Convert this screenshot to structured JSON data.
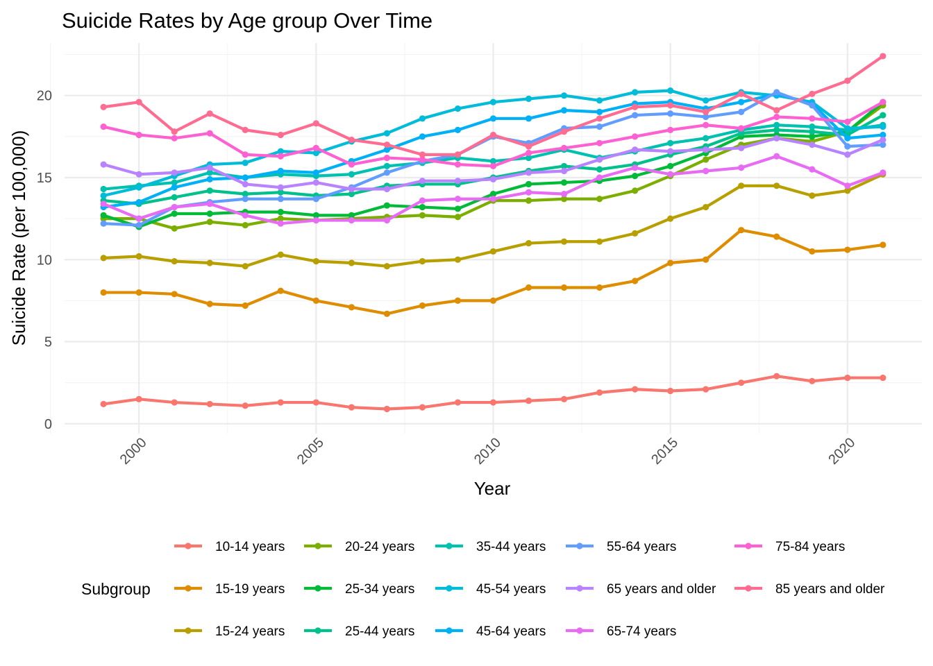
{
  "chart_data": {
    "type": "line",
    "title": "Suicide Rates by Age group Over Time",
    "xlabel": "Year",
    "ylabel": "Suicide Rate (per 100,000)",
    "xlim": [
      1997.9,
      2022.1
    ],
    "ylim": [
      -0.6,
      23.2
    ],
    "x_ticks": [
      2000,
      2005,
      2010,
      2015,
      2020
    ],
    "y_ticks": [
      0,
      5,
      10,
      15,
      20
    ],
    "grid": true,
    "legend_title": "Subgroup",
    "legend_position": "bottom",
    "x": [
      1999,
      2000,
      2001,
      2002,
      2003,
      2004,
      2005,
      2006,
      2007,
      2008,
      2009,
      2010,
      2011,
      2012,
      2013,
      2014,
      2015,
      2016,
      2017,
      2018,
      2019,
      2020,
      2021
    ],
    "series": [
      {
        "name": "10-14 years",
        "color": "#F8766D",
        "values": [
          1.2,
          1.5,
          1.3,
          1.2,
          1.1,
          1.3,
          1.3,
          1.0,
          0.9,
          1.0,
          1.3,
          1.3,
          1.4,
          1.5,
          1.9,
          2.1,
          2.0,
          2.1,
          2.5,
          2.9,
          2.6,
          2.8,
          2.8
        ]
      },
      {
        "name": "15-19 years",
        "color": "#DE8C00",
        "values": [
          8.0,
          8.0,
          7.9,
          7.3,
          7.2,
          8.1,
          7.5,
          7.1,
          6.7,
          7.2,
          7.5,
          7.5,
          8.3,
          8.3,
          8.3,
          8.7,
          9.8,
          10.0,
          11.8,
          11.4,
          10.5,
          10.6,
          10.9
        ]
      },
      {
        "name": "15-24 years",
        "color": "#B79F00",
        "values": [
          10.1,
          10.2,
          9.9,
          9.8,
          9.6,
          10.3,
          9.9,
          9.8,
          9.6,
          9.9,
          10.0,
          10.5,
          11.0,
          11.1,
          11.1,
          11.6,
          12.5,
          13.2,
          14.5,
          14.5,
          13.9,
          14.2,
          15.2
        ]
      },
      {
        "name": "20-24 years",
        "color": "#7CAE00",
        "values": [
          12.5,
          12.5,
          11.9,
          12.3,
          12.1,
          12.5,
          12.4,
          12.5,
          12.6,
          12.7,
          12.6,
          13.6,
          13.6,
          13.7,
          13.7,
          14.2,
          15.1,
          16.1,
          17.0,
          17.4,
          17.2,
          17.8,
          19.4
        ]
      },
      {
        "name": "25-34 years",
        "color": "#00BA38",
        "values": [
          12.7,
          12.0,
          12.8,
          12.8,
          12.9,
          12.9,
          12.7,
          12.7,
          13.3,
          13.2,
          13.1,
          14.0,
          14.6,
          14.7,
          14.8,
          15.1,
          15.7,
          16.5,
          17.5,
          17.6,
          17.5,
          17.8,
          19.6
        ]
      },
      {
        "name": "25-44 years",
        "color": "#00C08B",
        "values": [
          13.6,
          13.4,
          13.8,
          14.2,
          14.0,
          14.1,
          13.9,
          14.0,
          14.5,
          14.6,
          14.6,
          15.0,
          15.4,
          15.7,
          15.5,
          15.8,
          16.4,
          16.9,
          17.7,
          17.9,
          17.8,
          17.6,
          18.8
        ]
      },
      {
        "name": "35-44 years",
        "color": "#00C0AF",
        "values": [
          14.3,
          14.5,
          14.7,
          15.3,
          15.0,
          15.2,
          15.1,
          15.2,
          15.7,
          15.9,
          16.2,
          16.0,
          16.2,
          16.7,
          16.2,
          16.6,
          17.1,
          17.4,
          17.9,
          18.2,
          18.1,
          17.9,
          18.2
        ]
      },
      {
        "name": "45-54 years",
        "color": "#00BCD8",
        "values": [
          13.9,
          14.4,
          15.1,
          15.8,
          15.9,
          16.6,
          16.5,
          17.2,
          17.7,
          18.6,
          19.2,
          19.6,
          19.8,
          20.0,
          19.7,
          20.2,
          20.3,
          19.7,
          20.2,
          20.0,
          19.6,
          18.0,
          18.1
        ]
      },
      {
        "name": "45-64 years",
        "color": "#00B0F6",
        "values": [
          13.2,
          13.5,
          14.4,
          14.9,
          15.0,
          15.4,
          15.3,
          16.0,
          16.7,
          17.5,
          17.9,
          18.6,
          18.6,
          19.1,
          19.0,
          19.5,
          19.6,
          19.2,
          19.6,
          20.1,
          19.5,
          17.4,
          17.6
        ]
      },
      {
        "name": "55-64 years",
        "color": "#619CFF",
        "values": [
          12.2,
          12.1,
          13.2,
          13.5,
          13.7,
          13.7,
          13.7,
          14.4,
          15.3,
          16.0,
          16.4,
          17.5,
          17.1,
          18.0,
          18.1,
          18.8,
          18.9,
          18.7,
          19.0,
          20.2,
          19.4,
          16.9,
          17.0
        ]
      },
      {
        "name": "65 years and older",
        "color": "#B983FF",
        "values": [
          15.8,
          15.2,
          15.3,
          15.6,
          14.6,
          14.4,
          14.7,
          14.3,
          14.3,
          14.8,
          14.8,
          14.9,
          15.3,
          15.4,
          16.1,
          16.7,
          16.6,
          16.7,
          16.8,
          17.4,
          17.0,
          16.4,
          17.3
        ]
      },
      {
        "name": "65-74 years",
        "color": "#E76BF3",
        "values": [
          13.4,
          12.5,
          13.2,
          13.4,
          12.7,
          12.2,
          12.4,
          12.4,
          12.4,
          13.6,
          13.7,
          13.7,
          14.1,
          14.0,
          15.0,
          15.6,
          15.2,
          15.4,
          15.6,
          16.3,
          15.5,
          14.5,
          15.3
        ]
      },
      {
        "name": "75-84 years",
        "color": "#FD61D1",
        "values": [
          18.1,
          17.6,
          17.4,
          17.7,
          16.4,
          16.3,
          16.8,
          15.8,
          16.2,
          16.1,
          15.8,
          15.7,
          16.5,
          16.8,
          17.1,
          17.5,
          17.9,
          18.2,
          18.0,
          18.7,
          18.6,
          18.4,
          19.6
        ]
      },
      {
        "name": "85 years and older",
        "color": "#FF6C91",
        "values": [
          19.3,
          19.6,
          17.8,
          18.9,
          17.9,
          17.6,
          18.3,
          17.3,
          17.0,
          16.4,
          16.4,
          17.6,
          16.9,
          17.8,
          18.6,
          19.3,
          19.4,
          19.0,
          20.1,
          19.1,
          20.1,
          20.9,
          22.4
        ]
      }
    ]
  }
}
